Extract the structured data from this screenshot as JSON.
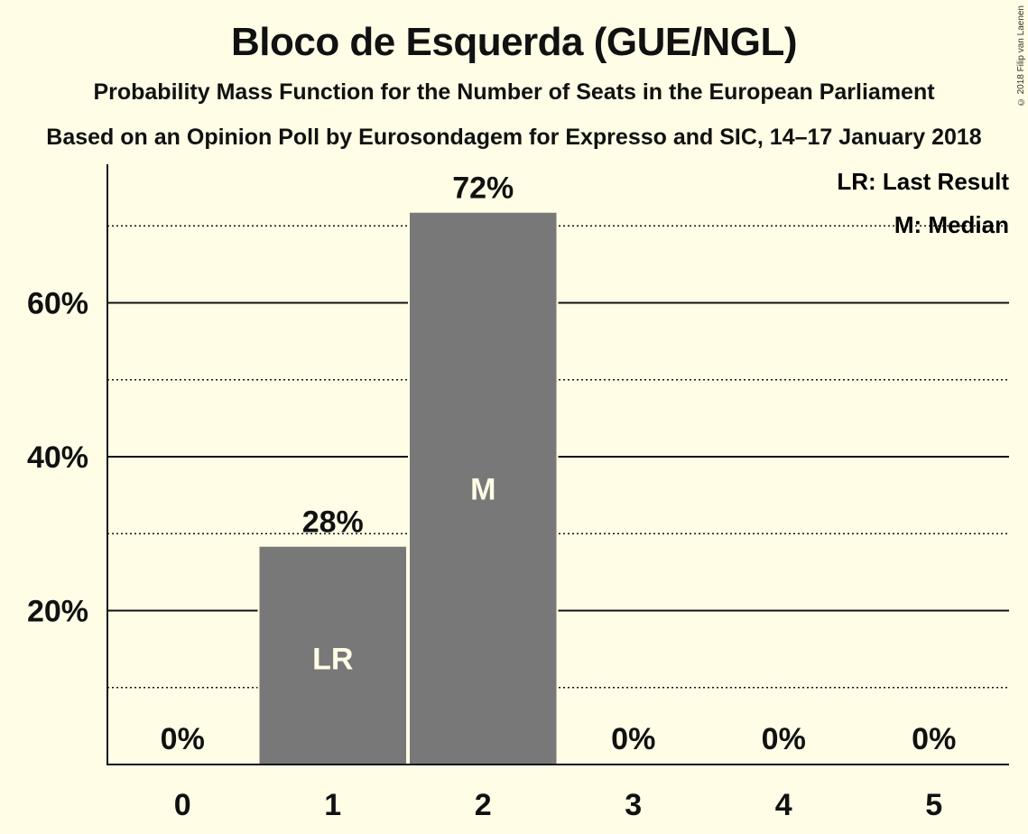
{
  "title": "Bloco de Esquerda (GUE/NGL)",
  "subtitle1": "Probability Mass Function for the Number of Seats in the European Parliament",
  "subtitle2": "Based on an Opinion Poll by Eurosondagem for Expresso and SIC, 14–17 January 2018",
  "copyright": "© 2018 Filip van Laenen",
  "legend": {
    "last_result": "LR: Last Result",
    "median": "M: Median"
  },
  "chart_data": {
    "type": "bar",
    "categories": [
      "0",
      "1",
      "2",
      "3",
      "4",
      "5"
    ],
    "values": [
      0,
      28.3,
      71.7,
      0,
      0,
      0
    ],
    "value_labels": [
      "0%",
      "28%",
      "72%",
      "0%",
      "0%",
      "0%"
    ],
    "bar_markers": [
      "",
      "LR",
      "M",
      "",
      "",
      ""
    ],
    "y_ticks": [
      20,
      40,
      60
    ],
    "y_tick_labels": [
      "20%",
      "40%",
      "60%"
    ],
    "y_minor_ticks": [
      10,
      30,
      50,
      70
    ],
    "ylim": [
      0,
      78
    ],
    "bar_color": "#787878",
    "background_color": "#fffde6",
    "legend_position": "top-right"
  }
}
